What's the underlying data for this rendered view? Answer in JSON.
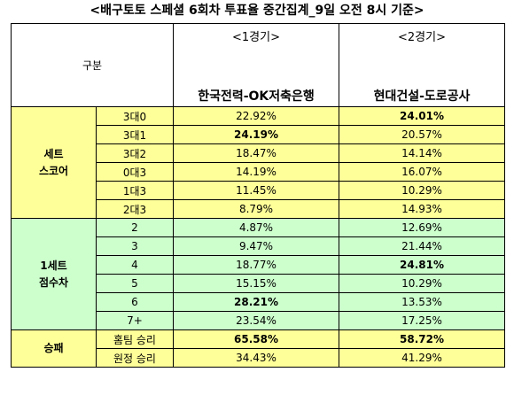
{
  "title": "<배구토토 스페셜 6회차 투표율 중간집계_9일 오전 8시 기준>",
  "header": {
    "gubun": "구분",
    "games": [
      {
        "label": "<1경기>",
        "match": "한국전력-OK저축은행"
      },
      {
        "label": "<2경기>",
        "match": "현대건설-도로공사"
      }
    ]
  },
  "sections": [
    {
      "name_line1": "세트",
      "name_line2": "스코어",
      "rows": [
        {
          "label": "3대0",
          "g1": "22.92%",
          "g2": "24.01%"
        },
        {
          "label": "3대1",
          "g1": "24.19%",
          "g2": "20.57%"
        },
        {
          "label": "3대2",
          "g1": "18.47%",
          "g2": "14.14%"
        },
        {
          "label": "0대3",
          "g1": "14.19%",
          "g2": "16.07%"
        },
        {
          "label": "1대3",
          "g1": "11.45%",
          "g2": "10.29%"
        },
        {
          "label": "2대3",
          "g1": "8.79%",
          "g2": "14.93%"
        }
      ]
    },
    {
      "name_line1": "1세트",
      "name_line2": "점수차",
      "rows": [
        {
          "label": "2",
          "g1": "4.87%",
          "g2": "12.69%"
        },
        {
          "label": "3",
          "g1": "9.47%",
          "g2": "21.44%"
        },
        {
          "label": "4",
          "g1": "18.77%",
          "g2": "24.81%"
        },
        {
          "label": "5",
          "g1": "15.15%",
          "g2": "10.29%"
        },
        {
          "label": "6",
          "g1": "28.21%",
          "g2": "13.53%"
        },
        {
          "label": "7+",
          "g1": "23.54%",
          "g2": "17.25%"
        }
      ]
    },
    {
      "name_line1": "승패",
      "name_line2": "",
      "rows": [
        {
          "label": "홈팀 승리",
          "g1": "65.58%",
          "g2": "58.72%"
        },
        {
          "label": "원정 승리",
          "g1": "34.43%",
          "g2": "41.29%"
        }
      ]
    }
  ],
  "colors": {
    "yellow": "#ffff99",
    "green": "#ccffcc"
  }
}
